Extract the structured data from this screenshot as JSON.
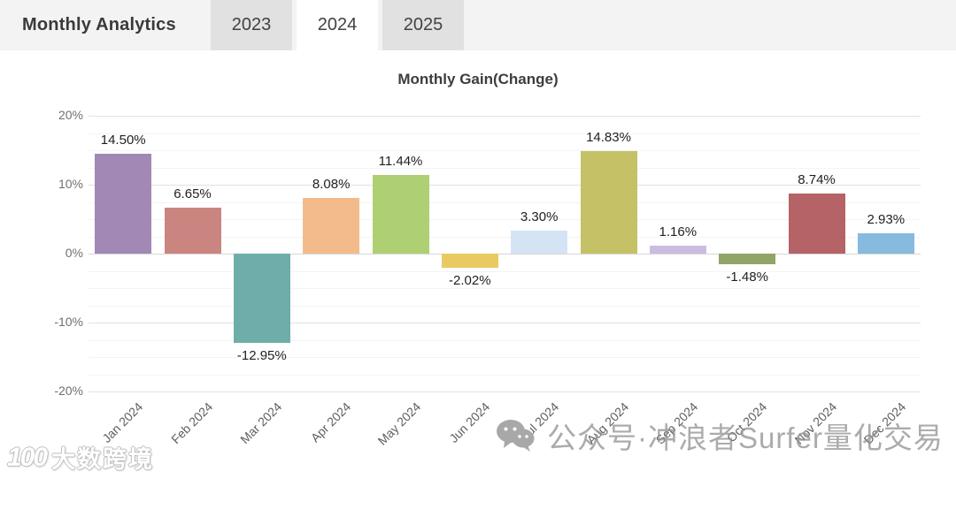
{
  "header": {
    "title": "Monthly Analytics",
    "tabs": [
      {
        "label": "2023",
        "active": false
      },
      {
        "label": "2024",
        "active": true
      },
      {
        "label": "2025",
        "active": false
      }
    ]
  },
  "chart_data": {
    "type": "bar",
    "title": "Monthly Gain(Change)",
    "categories": [
      "Jan 2024",
      "Feb 2024",
      "Mar 2024",
      "Apr 2024",
      "May 2024",
      "Jun 2024",
      "Jul 2024",
      "Aug 2024",
      "Sep 2024",
      "Oct 2024",
      "Nov 2024",
      "Dec 2024"
    ],
    "values": [
      14.5,
      6.65,
      -12.95,
      8.08,
      11.44,
      -2.02,
      3.3,
      14.83,
      1.16,
      -1.48,
      8.74,
      2.93
    ],
    "value_labels": [
      "14.50%",
      "6.65%",
      "-12.95%",
      "8.08%",
      "11.44%",
      "-2.02%",
      "3.30%",
      "14.83%",
      "1.16%",
      "-1.48%",
      "8.74%",
      "2.93%"
    ],
    "bar_colors": [
      "#a288b4",
      "#cb8581",
      "#6fadaa",
      "#f3bb8b",
      "#aed072",
      "#e9ca60",
      "#d4e4f4",
      "#c4c167",
      "#cbbcdf",
      "#90a566",
      "#b56366",
      "#86bade"
    ],
    "xlabel": "",
    "ylabel": "",
    "ylim": [
      -20,
      20
    ],
    "yticks": [
      {
        "label": "20%",
        "value": 20
      },
      {
        "label": "10%",
        "value": 10
      },
      {
        "label": "0%",
        "value": 0
      },
      {
        "label": "-10%",
        "value": -10
      },
      {
        "label": "-20%",
        "value": -20
      }
    ],
    "minor_grid_step": 2.5,
    "grid": true,
    "legend": false
  },
  "watermarks": {
    "center": {
      "icon": "wechat-icon",
      "text": "公众号·冲浪者Surfer量化交易"
    },
    "bottom_left": {
      "logo_text": "100",
      "text": "大数跨境"
    }
  },
  "colors": {
    "header_bg": "#f3f3f3",
    "tab_inactive_bg": "#e1e1e1",
    "tab_active_bg": "#ffffff",
    "grid_major": "#e2e2e2",
    "grid_minor": "#f4f4f4"
  }
}
